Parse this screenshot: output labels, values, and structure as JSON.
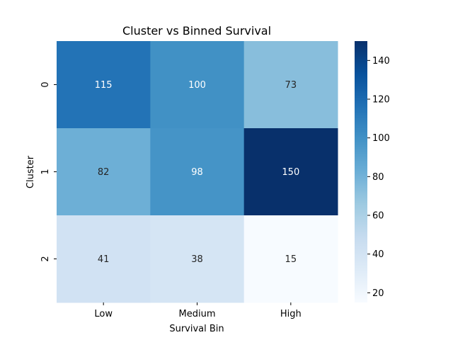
{
  "chart_data": {
    "type": "heatmap",
    "title": "Cluster vs Binned Survival",
    "xlabel": "Survival Bin",
    "ylabel": "Cluster",
    "x_categories": [
      "Low",
      "Medium",
      "High"
    ],
    "y_categories": [
      "0",
      "1",
      "2"
    ],
    "values": [
      [
        115,
        100,
        73
      ],
      [
        82,
        98,
        150
      ],
      [
        41,
        38,
        15
      ]
    ],
    "annotations": true,
    "colormap": "Blues",
    "color_range": [
      15,
      150
    ],
    "colorbar_ticks": [
      20,
      40,
      60,
      80,
      100,
      120,
      140
    ]
  }
}
